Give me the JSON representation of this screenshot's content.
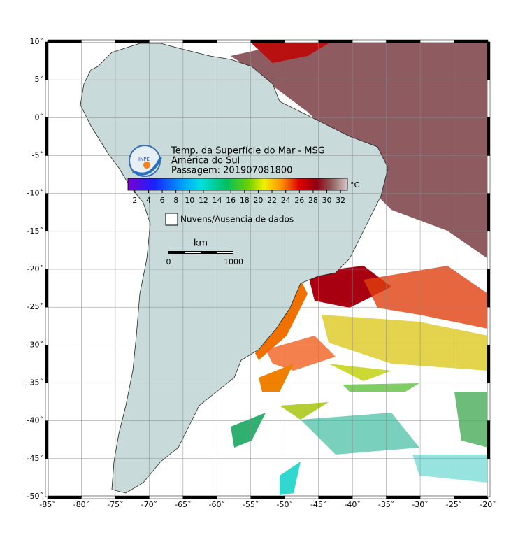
{
  "header": {
    "title": "Temp. da Superfície do Mar - MSG",
    "region": "América do Sul",
    "pass": "Passagem: 201907081800",
    "logo": "INPE"
  },
  "colorbar": {
    "unit": "°C",
    "range": [
      1,
      33
    ],
    "ticks": [
      2,
      4,
      6,
      8,
      10,
      12,
      14,
      16,
      18,
      20,
      22,
      24,
      26,
      28,
      30,
      32
    ]
  },
  "legend": {
    "label": "Nuvens/Ausencia de dados"
  },
  "scale_bar": {
    "unit": "km",
    "start": 0,
    "end": 1000
  },
  "map": {
    "xlim": [
      -85,
      -20
    ],
    "ylim": [
      -50,
      10
    ],
    "xticks": [
      {
        "value": -85,
        "label": "-85˚"
      },
      {
        "value": -80,
        "label": "-80˚"
      },
      {
        "value": -75,
        "label": "-75˚"
      },
      {
        "value": -70,
        "label": "-70˚"
      },
      {
        "value": -65,
        "label": "-65˚"
      },
      {
        "value": -60,
        "label": "-60˚"
      },
      {
        "value": -55,
        "label": "-55˚"
      },
      {
        "value": -50,
        "label": "-50˚"
      },
      {
        "value": -45,
        "label": "-45˚"
      },
      {
        "value": -40,
        "label": "-40˚"
      },
      {
        "value": -35,
        "label": "-35˚"
      },
      {
        "value": -30,
        "label": "-30˚"
      },
      {
        "value": -25,
        "label": "-25˚"
      },
      {
        "value": -20,
        "label": "-20˚"
      }
    ],
    "yticks": [
      {
        "value": 10,
        "label": "10˚"
      },
      {
        "value": 5,
        "label": "5˚"
      },
      {
        "value": 0,
        "label": "0˚"
      },
      {
        "value": -5,
        "label": "-5˚"
      },
      {
        "value": -10,
        "label": "-10˚"
      },
      {
        "value": -15,
        "label": "-15˚"
      },
      {
        "value": -20,
        "label": "-20˚"
      },
      {
        "value": -25,
        "label": "-25˚"
      },
      {
        "value": -30,
        "label": "-30˚"
      },
      {
        "value": -35,
        "label": "-35˚"
      },
      {
        "value": -40,
        "label": "-40˚"
      },
      {
        "value": -45,
        "label": "-45˚"
      },
      {
        "value": -50,
        "label": "-50˚"
      }
    ]
  }
}
